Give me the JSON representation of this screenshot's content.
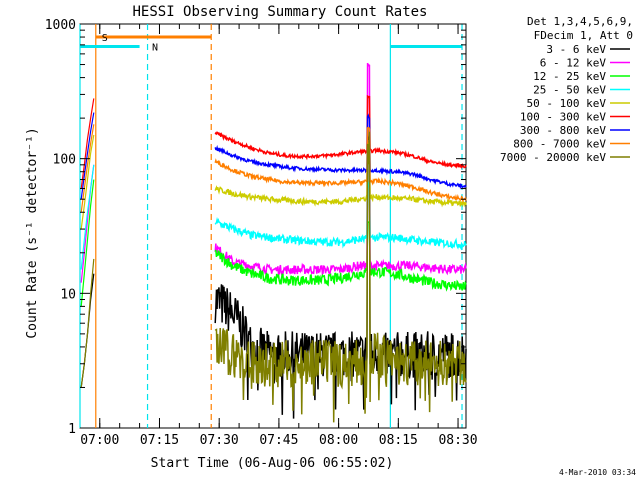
{
  "chart_data": {
    "type": "line",
    "title": "HESSI Observing Summary Count Rates",
    "xlabel": "Start Time (06-Aug-06 06:55:02)",
    "ylabel": "Count Rate (s⁻¹ detector⁻¹)",
    "y_scale": "log",
    "ylim": [
      1,
      1000
    ],
    "xlim": [
      "06:55:02",
      "08:32:00"
    ],
    "x_ticks": [
      "07:00",
      "07:15",
      "07:30",
      "07:45",
      "08:00",
      "08:15",
      "08:30"
    ],
    "y_ticks": [
      "1",
      "10",
      "100",
      "1000"
    ],
    "legend_header": [
      "Det 1,3,4,5,6,9,",
      "FDecim 1, Att 0"
    ],
    "legend_position": "right",
    "footer_date": "4-Mar-2010 03:34",
    "flags": [
      {
        "label": "S",
        "color": "#ff7f00",
        "start": "06:59:00",
        "end": "07:28:00",
        "level": 800
      },
      {
        "label": "N",
        "color": "#00e5ee",
        "start": "06:55:02",
        "end": "07:10:00",
        "level": 680
      },
      {
        "label": "",
        "color": "#00e5ee",
        "start": "08:13:00",
        "end": "08:31:00",
        "level": 680
      }
    ],
    "vlines": [
      {
        "time": "06:55:02",
        "color": "#00e5ee",
        "style": "solid"
      },
      {
        "time": "07:12:00",
        "color": "#00e5ee",
        "style": "dashed"
      },
      {
        "time": "07:28:00",
        "color": "#ff7f00",
        "style": "dashed"
      },
      {
        "time": "08:13:00",
        "color": "#00e5ee",
        "style": "solid"
      },
      {
        "time": "08:31:00",
        "color": "#00e5ee",
        "style": "dashed"
      },
      {
        "time": "06:59:00",
        "color": "#ff7f00",
        "style": "solid"
      }
    ],
    "gap": [
      "06:58:30",
      "07:29:00"
    ],
    "spike_time": "08:07:30",
    "series": [
      {
        "name": "3 - 6 keV",
        "color": "#000000",
        "pre": [
          2,
          3,
          5,
          9,
          14
        ],
        "values": [
          9,
          7,
          4,
          3.5,
          3.5,
          3.5,
          3.5,
          3.5,
          3.5,
          3.5,
          3.5,
          3.5,
          3.5,
          3.5,
          3.5
        ],
        "noise": 0.35
      },
      {
        "name": "6 - 12 keV",
        "color": "#ff00ff",
        "pre": [
          12,
          20,
          35,
          60,
          90
        ],
        "values": [
          22,
          17,
          16,
          15,
          15,
          15,
          15,
          15,
          16,
          16,
          16,
          16,
          15.5,
          15,
          15
        ],
        "noise": 0.07
      },
      {
        "name": "12 - 25 keV",
        "color": "#00ff00",
        "pre": [
          8,
          14,
          25,
          45,
          70
        ],
        "values": [
          20,
          16,
          14,
          13,
          12.5,
          12.5,
          12.5,
          13,
          14,
          14.5,
          14,
          13,
          12,
          11.5,
          11
        ],
        "noise": 0.08
      },
      {
        "name": "25 - 50 keV",
        "color": "#00ffff",
        "pre": [
          15,
          25,
          40,
          60,
          90
        ],
        "values": [
          34,
          30,
          27,
          26,
          25,
          24.5,
          24,
          24,
          25,
          26,
          26,
          25,
          24,
          23.5,
          23
        ],
        "noise": 0.06
      },
      {
        "name": "50 - 100 keV",
        "color": "#cccc00",
        "pre": [
          30,
          45,
          70,
          110,
          150
        ],
        "values": [
          60,
          55,
          52,
          50,
          49,
          48,
          48,
          48,
          50,
          52,
          51,
          50,
          48,
          47,
          46
        ],
        "noise": 0.04
      },
      {
        "name": "100 - 300 keV",
        "color": "#ff0000",
        "pre": [
          60,
          90,
          140,
          200,
          280
        ],
        "values": [
          155,
          135,
          120,
          110,
          105,
          104,
          105,
          108,
          112,
          115,
          112,
          105,
          95,
          90,
          88
        ],
        "noise": 0.025
      },
      {
        "name": "300 - 800 keV",
        "color": "#0000ff",
        "pre": [
          50,
          75,
          110,
          160,
          220
        ],
        "values": [
          120,
          105,
          95,
          90,
          86,
          84,
          83,
          82,
          82,
          82,
          80,
          77,
          70,
          65,
          62
        ],
        "noise": 0.025
      },
      {
        "name": "800 - 7000 keV",
        "color": "#ff7f00",
        "pre": [
          40,
          60,
          90,
          130,
          180
        ],
        "values": [
          95,
          82,
          74,
          70,
          67,
          66,
          66,
          66,
          67,
          68,
          66,
          62,
          56,
          52,
          50
        ],
        "noise": 0.03
      },
      {
        "name": "7000 - 20000 keV",
        "color": "#7f7f00",
        "pre": [
          2,
          3,
          5,
          10,
          18
        ],
        "values": [
          4,
          3.5,
          3,
          3,
          3,
          3,
          3,
          3,
          3,
          3.5,
          3,
          3,
          3,
          3,
          3
        ],
        "noise": 0.35
      }
    ]
  }
}
